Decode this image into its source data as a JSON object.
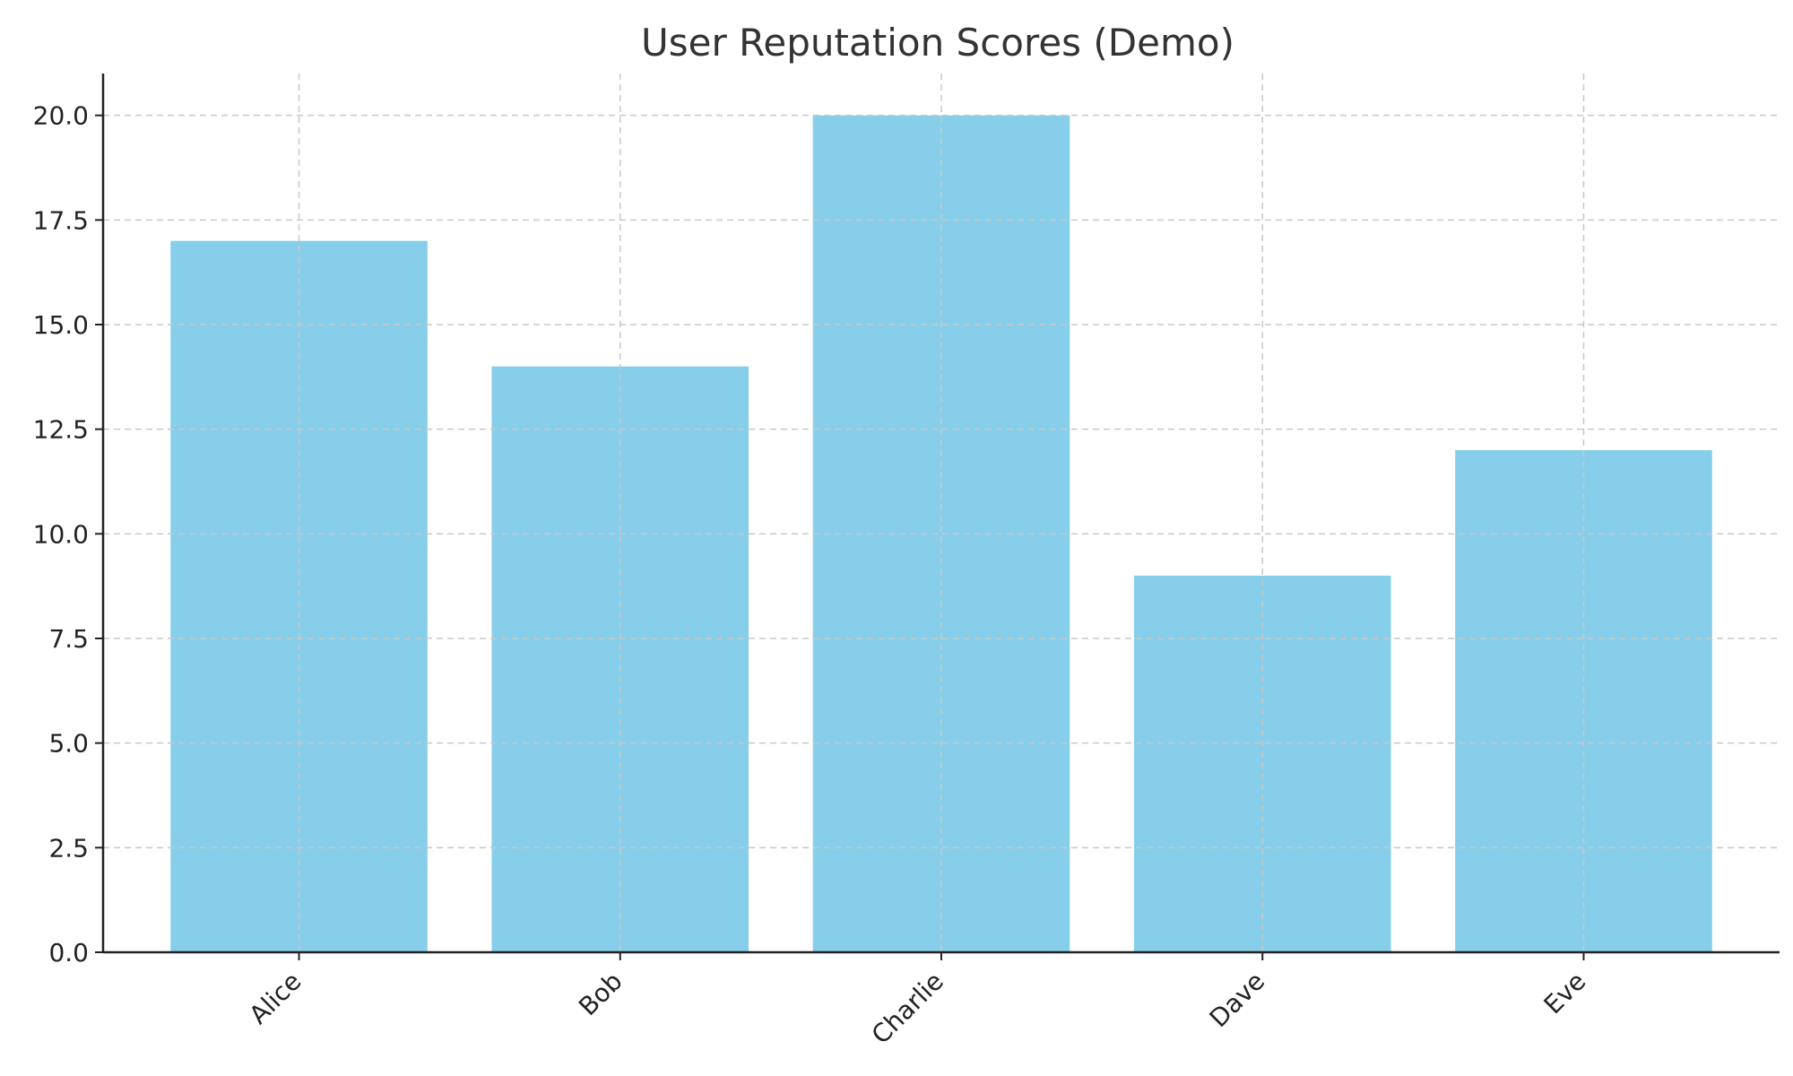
{
  "chart_data": {
    "type": "bar",
    "title": "User Reputation Scores (Demo)",
    "xlabel": "",
    "ylabel": "",
    "categories": [
      "Alice",
      "Bob",
      "Charlie",
      "Dave",
      "Eve"
    ],
    "values": [
      17,
      14,
      20,
      9,
      12
    ],
    "ylim": [
      0,
      21
    ],
    "yticks": [
      0.0,
      2.5,
      5.0,
      7.5,
      10.0,
      12.5,
      15.0,
      17.5,
      20.0
    ],
    "ytick_labels": [
      "0.0",
      "2.5",
      "5.0",
      "7.5",
      "10.0",
      "12.5",
      "15.0",
      "17.5",
      "20.0"
    ],
    "grid": true,
    "bar_color": "#87CEEB",
    "x_tick_rotation": -45
  }
}
